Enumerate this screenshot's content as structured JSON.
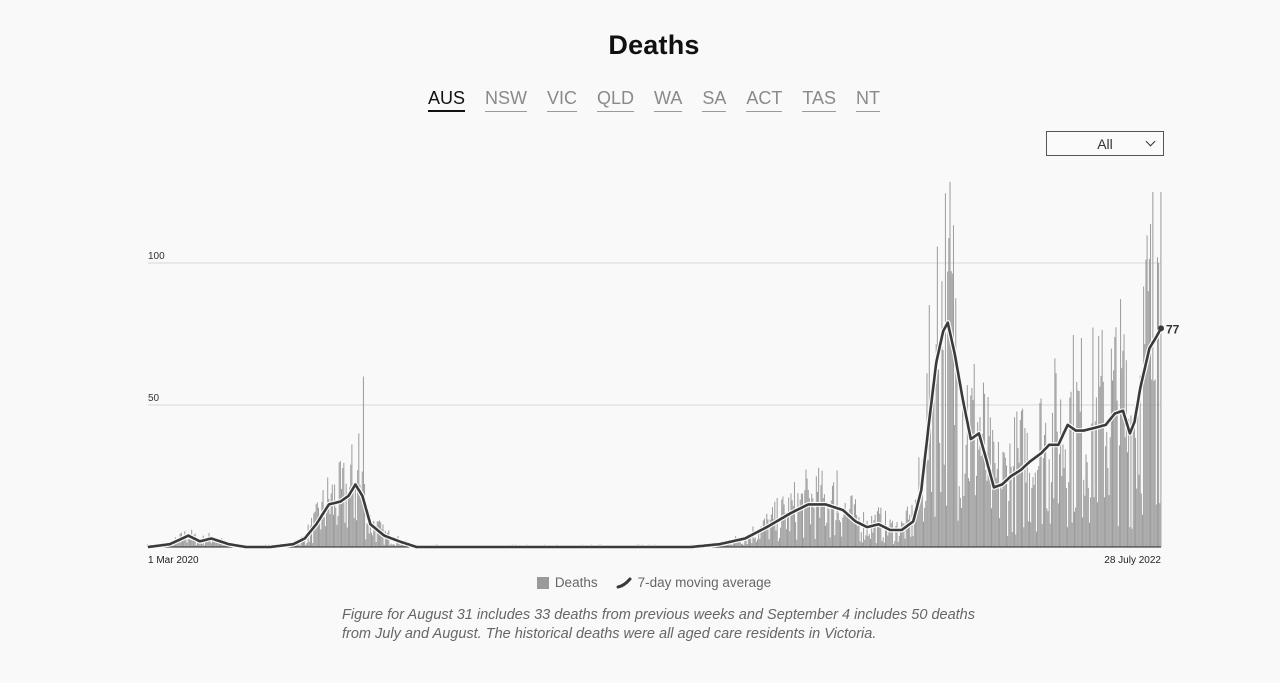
{
  "page": {
    "title": "Deaths",
    "tabs": [
      {
        "label": "AUS",
        "active": true
      },
      {
        "label": "NSW",
        "active": false
      },
      {
        "label": "VIC",
        "active": false
      },
      {
        "label": "QLD",
        "active": false
      },
      {
        "label": "WA",
        "active": false
      },
      {
        "label": "SA",
        "active": false
      },
      {
        "label": "ACT",
        "active": false
      },
      {
        "label": "TAS",
        "active": false
      },
      {
        "label": "NT",
        "active": false
      }
    ],
    "range_select": {
      "value": "All"
    },
    "note": "Figure for August 31 includes 33 deaths from previous weeks and September 4 includes 50 deaths from July and August. The historical deaths were all aged care residents in Victoria."
  },
  "chart_data": {
    "type": "bar",
    "title": "Deaths",
    "x_start": "1 Mar 2020",
    "x_end": "28 July 2022",
    "x_tick_labels": [
      "1 Mar 2020",
      "28 July 2022"
    ],
    "yticks": [
      50,
      100
    ],
    "ylim": [
      0,
      125
    ],
    "grid": true,
    "legend_position": "bottom-center",
    "legend": [
      "Deaths",
      "7-day moving average"
    ],
    "colors": {
      "bars": "#9a9a9a",
      "line": "#3a3a3a",
      "grid": "#d6d6d6"
    },
    "last_value_label": "77",
    "series": [
      {
        "name": "Deaths",
        "kind": "bars"
      },
      {
        "name": "7-day moving average",
        "kind": "line",
        "keypoints": [
          [
            "2020-03-01",
            0
          ],
          [
            "2020-03-20",
            1
          ],
          [
            "2020-04-05",
            4
          ],
          [
            "2020-04-15",
            2
          ],
          [
            "2020-04-25",
            3
          ],
          [
            "2020-05-10",
            1
          ],
          [
            "2020-05-25",
            0
          ],
          [
            "2020-06-15",
            0
          ],
          [
            "2020-07-05",
            1
          ],
          [
            "2020-07-15",
            3
          ],
          [
            "2020-07-25",
            8
          ],
          [
            "2020-08-05",
            15
          ],
          [
            "2020-08-15",
            16
          ],
          [
            "2020-08-22",
            18
          ],
          [
            "2020-08-28",
            22
          ],
          [
            "2020-09-03",
            18
          ],
          [
            "2020-09-10",
            8
          ],
          [
            "2020-09-22",
            4
          ],
          [
            "2020-10-05",
            2
          ],
          [
            "2020-10-20",
            0
          ],
          [
            "2020-11-15",
            0
          ],
          [
            "2021-01-01",
            0
          ],
          [
            "2021-03-01",
            0
          ],
          [
            "2021-05-01",
            0
          ],
          [
            "2021-06-15",
            0
          ],
          [
            "2021-07-10",
            1
          ],
          [
            "2021-08-01",
            3
          ],
          [
            "2021-08-20",
            7
          ],
          [
            "2021-09-10",
            12
          ],
          [
            "2021-09-25",
            15
          ],
          [
            "2021-10-10",
            15
          ],
          [
            "2021-10-25",
            13
          ],
          [
            "2021-11-05",
            9
          ],
          [
            "2021-11-15",
            7
          ],
          [
            "2021-11-25",
            8
          ],
          [
            "2021-12-05",
            6
          ],
          [
            "2021-12-15",
            6
          ],
          [
            "2021-12-25",
            9
          ],
          [
            "2022-01-01",
            20
          ],
          [
            "2022-01-08",
            45
          ],
          [
            "2022-01-14",
            65
          ],
          [
            "2022-01-20",
            76
          ],
          [
            "2022-01-24",
            79
          ],
          [
            "2022-01-30",
            68
          ],
          [
            "2022-02-06",
            52
          ],
          [
            "2022-02-13",
            38
          ],
          [
            "2022-02-20",
            40
          ],
          [
            "2022-02-27",
            30
          ],
          [
            "2022-03-05",
            21
          ],
          [
            "2022-03-12",
            22
          ],
          [
            "2022-03-20",
            25
          ],
          [
            "2022-03-28",
            27
          ],
          [
            "2022-04-05",
            30
          ],
          [
            "2022-04-15",
            33
          ],
          [
            "2022-04-22",
            36
          ],
          [
            "2022-04-30",
            36
          ],
          [
            "2022-05-08",
            43
          ],
          [
            "2022-05-15",
            41
          ],
          [
            "2022-05-22",
            41
          ],
          [
            "2022-06-01",
            42
          ],
          [
            "2022-06-10",
            43
          ],
          [
            "2022-06-18",
            47
          ],
          [
            "2022-06-25",
            48
          ],
          [
            "2022-07-01",
            40
          ],
          [
            "2022-07-05",
            44
          ],
          [
            "2022-07-10",
            56
          ],
          [
            "2022-07-18",
            70
          ],
          [
            "2022-07-24",
            74
          ],
          [
            "2022-07-28",
            77
          ]
        ]
      }
    ]
  }
}
